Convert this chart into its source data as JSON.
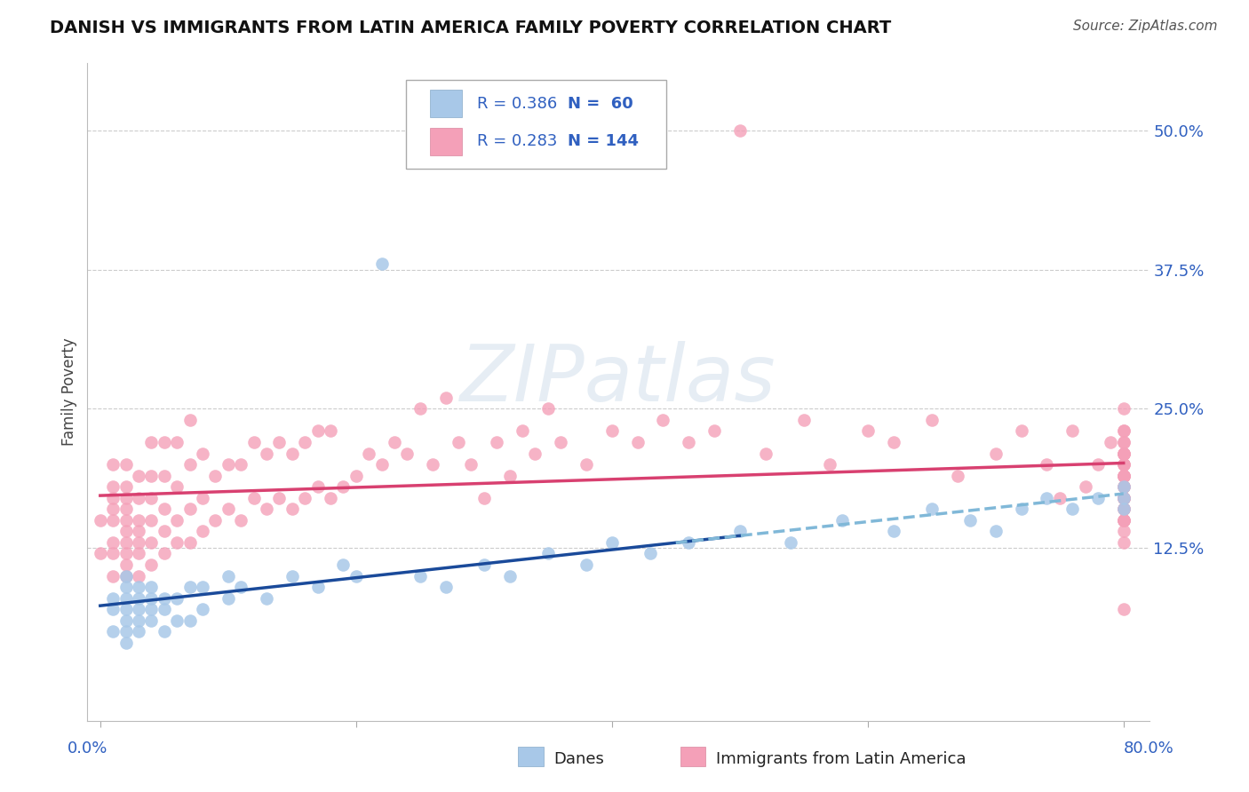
{
  "title": "DANISH VS IMMIGRANTS FROM LATIN AMERICA FAMILY POVERTY CORRELATION CHART",
  "source": "Source: ZipAtlas.com",
  "ylabel": "Family Poverty",
  "xlim": [
    -0.01,
    0.82
  ],
  "ylim": [
    -0.03,
    0.56
  ],
  "yticks": [
    0.0,
    0.125,
    0.25,
    0.375,
    0.5
  ],
  "ytick_labels": [
    "",
    "12.5%",
    "25.0%",
    "37.5%",
    "50.0%"
  ],
  "xticks": [
    0.0,
    0.2,
    0.4,
    0.6,
    0.8
  ],
  "legend_R1": "R = 0.386",
  "legend_N1": "N =  60",
  "legend_R2": "R = 0.283",
  "legend_N2": "N = 144",
  "danes_color": "#a8c8e8",
  "immigrants_color": "#f4a0b8",
  "danes_line_color": "#1a4a9a",
  "immigrants_line_color": "#d84070",
  "danes_dash_color": "#80b8d8",
  "watermark_color": "#c8d8e8",
  "axis_label_color": "#3060c0",
  "title_color": "#111111",
  "source_color": "#555555",
  "ylabel_color": "#444444",
  "background_color": "#ffffff",
  "grid_color": "#cccccc",
  "legend_border_color": "#aaaaaa",
  "danes_x": [
    0.01,
    0.01,
    0.01,
    0.02,
    0.02,
    0.02,
    0.02,
    0.02,
    0.02,
    0.02,
    0.03,
    0.03,
    0.03,
    0.03,
    0.03,
    0.04,
    0.04,
    0.04,
    0.04,
    0.05,
    0.05,
    0.05,
    0.06,
    0.06,
    0.07,
    0.07,
    0.08,
    0.08,
    0.1,
    0.1,
    0.11,
    0.13,
    0.15,
    0.17,
    0.19,
    0.2,
    0.22,
    0.25,
    0.27,
    0.3,
    0.32,
    0.35,
    0.38,
    0.4,
    0.43,
    0.46,
    0.5,
    0.54,
    0.58,
    0.62,
    0.65,
    0.68,
    0.7,
    0.72,
    0.74,
    0.76,
    0.78,
    0.8,
    0.8,
    0.8
  ],
  "danes_y": [
    0.05,
    0.07,
    0.08,
    0.04,
    0.05,
    0.06,
    0.07,
    0.08,
    0.09,
    0.1,
    0.05,
    0.06,
    0.07,
    0.08,
    0.09,
    0.06,
    0.07,
    0.08,
    0.09,
    0.05,
    0.07,
    0.08,
    0.06,
    0.08,
    0.06,
    0.09,
    0.07,
    0.09,
    0.08,
    0.1,
    0.09,
    0.08,
    0.1,
    0.09,
    0.11,
    0.1,
    0.38,
    0.1,
    0.09,
    0.11,
    0.1,
    0.12,
    0.11,
    0.13,
    0.12,
    0.13,
    0.14,
    0.13,
    0.15,
    0.14,
    0.16,
    0.15,
    0.14,
    0.16,
    0.17,
    0.16,
    0.17,
    0.16,
    0.17,
    0.18
  ],
  "immigrants_x": [
    0.0,
    0.0,
    0.01,
    0.01,
    0.01,
    0.01,
    0.01,
    0.01,
    0.01,
    0.01,
    0.02,
    0.02,
    0.02,
    0.02,
    0.02,
    0.02,
    0.02,
    0.02,
    0.02,
    0.02,
    0.03,
    0.03,
    0.03,
    0.03,
    0.03,
    0.03,
    0.03,
    0.04,
    0.04,
    0.04,
    0.04,
    0.04,
    0.04,
    0.05,
    0.05,
    0.05,
    0.05,
    0.05,
    0.06,
    0.06,
    0.06,
    0.06,
    0.07,
    0.07,
    0.07,
    0.07,
    0.08,
    0.08,
    0.08,
    0.09,
    0.09,
    0.1,
    0.1,
    0.11,
    0.11,
    0.12,
    0.12,
    0.13,
    0.13,
    0.14,
    0.14,
    0.15,
    0.15,
    0.16,
    0.16,
    0.17,
    0.17,
    0.18,
    0.18,
    0.19,
    0.2,
    0.21,
    0.22,
    0.23,
    0.24,
    0.25,
    0.26,
    0.27,
    0.28,
    0.29,
    0.3,
    0.31,
    0.32,
    0.33,
    0.34,
    0.35,
    0.36,
    0.38,
    0.4,
    0.42,
    0.44,
    0.46,
    0.48,
    0.5,
    0.52,
    0.55,
    0.57,
    0.6,
    0.62,
    0.65,
    0.67,
    0.7,
    0.72,
    0.74,
    0.75,
    0.76,
    0.77,
    0.78,
    0.79,
    0.8,
    0.8,
    0.8,
    0.8,
    0.8,
    0.8,
    0.8,
    0.8,
    0.8,
    0.8,
    0.8,
    0.8,
    0.8,
    0.8,
    0.8,
    0.8,
    0.8,
    0.8,
    0.8,
    0.8,
    0.8,
    0.8,
    0.8,
    0.8,
    0.8,
    0.8,
    0.8,
    0.8,
    0.8,
    0.8,
    0.8,
    0.8,
    0.8,
    0.8,
    0.8
  ],
  "immigrants_y": [
    0.12,
    0.15,
    0.1,
    0.12,
    0.13,
    0.15,
    0.16,
    0.17,
    0.18,
    0.2,
    0.1,
    0.11,
    0.12,
    0.13,
    0.14,
    0.15,
    0.16,
    0.17,
    0.18,
    0.2,
    0.1,
    0.12,
    0.13,
    0.14,
    0.15,
    0.17,
    0.19,
    0.11,
    0.13,
    0.15,
    0.17,
    0.19,
    0.22,
    0.12,
    0.14,
    0.16,
    0.19,
    0.22,
    0.13,
    0.15,
    0.18,
    0.22,
    0.13,
    0.16,
    0.2,
    0.24,
    0.14,
    0.17,
    0.21,
    0.15,
    0.19,
    0.16,
    0.2,
    0.15,
    0.2,
    0.17,
    0.22,
    0.16,
    0.21,
    0.17,
    0.22,
    0.16,
    0.21,
    0.17,
    0.22,
    0.18,
    0.23,
    0.17,
    0.23,
    0.18,
    0.19,
    0.21,
    0.2,
    0.22,
    0.21,
    0.25,
    0.2,
    0.26,
    0.22,
    0.2,
    0.17,
    0.22,
    0.19,
    0.23,
    0.21,
    0.25,
    0.22,
    0.2,
    0.23,
    0.22,
    0.24,
    0.22,
    0.23,
    0.5,
    0.21,
    0.24,
    0.2,
    0.23,
    0.22,
    0.24,
    0.19,
    0.21,
    0.23,
    0.2,
    0.17,
    0.23,
    0.18,
    0.2,
    0.22,
    0.15,
    0.17,
    0.19,
    0.21,
    0.23,
    0.16,
    0.18,
    0.2,
    0.22,
    0.17,
    0.19,
    0.21,
    0.23,
    0.15,
    0.17,
    0.19,
    0.21,
    0.16,
    0.18,
    0.2,
    0.22,
    0.14,
    0.16,
    0.18,
    0.2,
    0.15,
    0.17,
    0.19,
    0.07,
    0.13,
    0.25,
    0.15,
    0.17,
    0.19,
    0.21
  ]
}
